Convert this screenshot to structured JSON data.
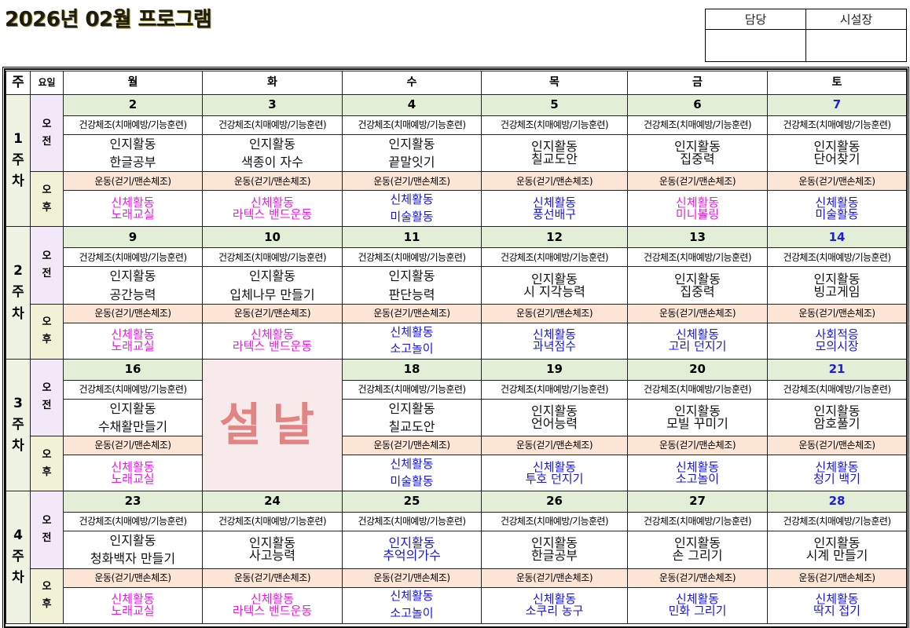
{
  "title": "2026년 02월  프로그램",
  "signoff": {
    "headers": [
      "담당",
      "시설장"
    ],
    "values": [
      "",
      ""
    ]
  },
  "header": {
    "week_label": "주",
    "period_label": "요일",
    "days": [
      "월",
      "화",
      "수",
      "목",
      "금",
      "토"
    ]
  },
  "period_labels": {
    "am": "오\n전",
    "pm": "오\n후",
    "am_lines": [
      "오",
      "전"
    ],
    "pm_lines": [
      "오",
      "후"
    ]
  },
  "colors": {
    "date_row_bg": "#e2eed5",
    "afternoon_exercise_bg": "#fde5d6",
    "am_label_bg": "#f3e8f7",
    "pm_label_bg": "#f1f1d6",
    "saturday_date": "#1d1de0",
    "magenta_text": "#ee18e8",
    "blue_text": "#1414e8",
    "holiday_text": "#e38484"
  },
  "weeks": [
    {
      "label": [
        "1",
        "주",
        "차"
      ],
      "days": [
        {
          "date": "2",
          "am_exercise": "건강체조(치매예방/기능훈련)",
          "cog": [
            "인지활동",
            "한글공부"
          ],
          "cog_color": "black",
          "cog_style": "spread",
          "pm_exercise": "운동(걷기/맨손체조)",
          "phys": [
            "신체활동",
            "노래교실"
          ],
          "phys_color": "magenta",
          "phys_style": "tight"
        },
        {
          "date": "3",
          "am_exercise": "건강체조(치매예방/기능훈련)",
          "cog": [
            "인지활동",
            "색종이  자수"
          ],
          "cog_color": "black",
          "cog_style": "spread",
          "pm_exercise": "운동(걷기/맨손체조)",
          "phys": [
            "신체활동",
            "라텍스 밴드운동"
          ],
          "phys_color": "magenta",
          "phys_style": "tight"
        },
        {
          "date": "4",
          "am_exercise": "건강체조(치매예방/기능훈련)",
          "cog": [
            "인지활동",
            "끝말잇기"
          ],
          "cog_color": "black",
          "cog_style": "spread",
          "pm_exercise": "운동(걷기/맨손체조)",
          "phys": [
            "신체활동",
            "미술활동"
          ],
          "phys_color": "blue",
          "phys_style": "spread"
        },
        {
          "date": "5",
          "am_exercise": "건강체조(치매예방/기능훈련)",
          "cog": [
            "인지활동",
            "칠교도안"
          ],
          "cog_color": "black",
          "cog_style": "tight",
          "pm_exercise": "운동(걷기/맨손체조)",
          "phys": [
            "신체활동",
            "풍선배구"
          ],
          "phys_color": "blue",
          "phys_style": "tight"
        },
        {
          "date": "6",
          "am_exercise": "건강체조(치매예방/기능훈련)",
          "cog": [
            "인지활동",
            "집중력"
          ],
          "cog_color": "black",
          "cog_style": "tight",
          "pm_exercise": "운동(걷기/맨손체조)",
          "phys": [
            "신체활동",
            "미니볼링"
          ],
          "phys_color": "magenta",
          "phys_style": "tight"
        },
        {
          "date": "7",
          "am_exercise": "건강체조(치매예방/기능훈련)",
          "cog": [
            "인지활동",
            "단어찾기"
          ],
          "cog_color": "black",
          "cog_style": "tight",
          "pm_exercise": "운동(걷기/맨손체조)",
          "phys": [
            "신체활동",
            "미술활동"
          ],
          "phys_color": "blue",
          "phys_style": "tight"
        }
      ]
    },
    {
      "label": [
        "2",
        "주",
        "차"
      ],
      "days": [
        {
          "date": "9",
          "am_exercise": "건강체조(치매예방/기능훈련)",
          "cog": [
            "인지활동",
            "공간능력"
          ],
          "cog_color": "black",
          "cog_style": "spread",
          "pm_exercise": "운동(걷기/맨손체조)",
          "phys": [
            "신체활동",
            "노래교실"
          ],
          "phys_color": "magenta",
          "phys_style": "tight"
        },
        {
          "date": "10",
          "am_exercise": "건강체조(치매예방/기능훈련)",
          "cog": [
            "인지활동",
            "입체나무  만들기"
          ],
          "cog_color": "black",
          "cog_style": "spread",
          "pm_exercise": "운동(걷기/맨손체조)",
          "phys": [
            "신체활동",
            "라텍스 밴드운동"
          ],
          "phys_color": "magenta",
          "phys_style": "tight"
        },
        {
          "date": "11",
          "am_exercise": "건강체조(치매예방/기능훈련)",
          "cog": [
            "인지활동",
            "판단능력"
          ],
          "cog_color": "black",
          "cog_style": "spread",
          "pm_exercise": "운동(걷기/맨손체조)",
          "phys": [
            "신체활동",
            "소고놀이"
          ],
          "phys_color": "blue",
          "phys_style": "spread"
        },
        {
          "date": "12",
          "am_exercise": "건강체조(치매예방/기능훈련)",
          "cog": [
            "인지활동",
            "시 지각능력"
          ],
          "cog_color": "black",
          "cog_style": "tight",
          "pm_exercise": "운동(걷기/맨손체조)",
          "phys": [
            "신체활동",
            "과녁점수"
          ],
          "phys_color": "blue",
          "phys_style": "tight"
        },
        {
          "date": "13",
          "am_exercise": "건강체조(치매예방/기능훈련)",
          "cog": [
            "인지활동",
            "집중력"
          ],
          "cog_color": "black",
          "cog_style": "tight",
          "pm_exercise": "운동(걷기/맨손체조)",
          "phys": [
            "신체활동",
            "고리  던지기"
          ],
          "phys_color": "blue",
          "phys_style": "tight"
        },
        {
          "date": "14",
          "am_exercise": "건강체조(치매예방/기능훈련)",
          "cog": [
            "인지활동",
            "빙고게임"
          ],
          "cog_color": "black",
          "cog_style": "tight",
          "pm_exercise": "운동(걷기/맨손체조)",
          "phys": [
            "사회적응",
            "모의시장"
          ],
          "phys_color": "blue",
          "phys_style": "tight"
        }
      ]
    },
    {
      "label": [
        "3",
        "주",
        "차"
      ],
      "holiday": {
        "day_index": 1,
        "text": "설날"
      },
      "days": [
        {
          "date": "16",
          "am_exercise": "건강체조(치매예방/기능훈련)",
          "cog": [
            "인지활동",
            "수채활만들기"
          ],
          "cog_color": "black",
          "cog_style": "spread",
          "pm_exercise": "운동(걷기/맨손체조)",
          "phys": [
            "신체활동",
            "노래교실"
          ],
          "phys_color": "magenta",
          "phys_style": "tight"
        },
        null,
        {
          "date": "18",
          "am_exercise": "건강체조(치매예방/기능훈련)",
          "cog": [
            "인지활동",
            "칠교도안"
          ],
          "cog_color": "black",
          "cog_style": "spread",
          "pm_exercise": "운동(걷기/맨손체조)",
          "phys": [
            "신체활동",
            "미술활동"
          ],
          "phys_color": "blue",
          "phys_style": "spread"
        },
        {
          "date": "19",
          "am_exercise": "건강체조(치매예방/기능훈련)",
          "cog": [
            "인지활동",
            "언어능력"
          ],
          "cog_color": "black",
          "cog_style": "tight",
          "pm_exercise": "운동(걷기/맨손체조)",
          "phys": [
            "신체활동",
            "투호  던지기"
          ],
          "phys_color": "blue",
          "phys_style": "tight"
        },
        {
          "date": "20",
          "am_exercise": "건강체조(치매예방/기능훈련)",
          "cog": [
            "인지활동",
            "모빌  꾸미기"
          ],
          "cog_color": "black",
          "cog_style": "tight",
          "pm_exercise": "운동(걷기/맨손체조)",
          "phys": [
            "신체활동",
            "소고놀이"
          ],
          "phys_color": "blue",
          "phys_style": "tight"
        },
        {
          "date": "21",
          "am_exercise": "건강체조(치매예방/기능훈련)",
          "cog": [
            "인지활동",
            "암호풀기"
          ],
          "cog_color": "black",
          "cog_style": "tight",
          "pm_exercise": "운동(걷기/맨손체조)",
          "phys": [
            "신체활동",
            "청기  백기"
          ],
          "phys_color": "blue",
          "phys_style": "tight"
        }
      ]
    },
    {
      "label": [
        "4",
        "주",
        "차"
      ],
      "days": [
        {
          "date": "23",
          "am_exercise": "건강체조(치매예방/기능훈련)",
          "cog": [
            "인지활동",
            "청화백자  만들기"
          ],
          "cog_color": "black",
          "cog_style": "spread",
          "pm_exercise": "운동(걷기/맨손체조)",
          "phys": [
            "신체활동",
            "노래교실"
          ],
          "phys_color": "magenta",
          "phys_style": "tight"
        },
        {
          "date": "24",
          "am_exercise": "건강체조(치매예방/기능훈련)",
          "cog": [
            "인지활동",
            "사고능력"
          ],
          "cog_color": "black",
          "cog_style": "tight",
          "pm_exercise": "운동(걷기/맨손체조)",
          "phys": [
            "신체활동",
            "라텍스  밴드운동"
          ],
          "phys_color": "magenta",
          "phys_style": "tight"
        },
        {
          "date": "25",
          "am_exercise": "건강체조(치매예방/기능훈련)",
          "cog": [
            "인지활동",
            "추억의가수"
          ],
          "cog_color": "blue",
          "cog_style": "tight",
          "pm_exercise": "운동(걷기/맨손체조)",
          "phys": [
            "신체활동",
            "소고놀이"
          ],
          "phys_color": "blue",
          "phys_style": "spread"
        },
        {
          "date": "26",
          "am_exercise": "건강체조(치매예방/기능훈련)",
          "cog": [
            "인지활동",
            "한글공부"
          ],
          "cog_color": "black",
          "cog_style": "tight",
          "pm_exercise": "운동(걷기/맨손체조)",
          "phys": [
            "신체활동",
            "소쿠리  농구"
          ],
          "phys_color": "blue",
          "phys_style": "tight"
        },
        {
          "date": "27",
          "am_exercise": "건강체조(치매예방/기능훈련)",
          "cog": [
            "인지활동",
            "손  그리기"
          ],
          "cog_color": "black",
          "cog_style": "tight",
          "pm_exercise": "운동(걷기/맨손체조)",
          "phys": [
            "신체활동",
            "민화  그리기"
          ],
          "phys_color": "blue",
          "phys_style": "tight"
        },
        {
          "date": "28",
          "am_exercise": "건강체조(치매예방/기능훈련)",
          "cog": [
            "인지활동",
            "시계  만들기"
          ],
          "cog_color": "black",
          "cog_style": "tight",
          "pm_exercise": "운동(걷기/맨손체조)",
          "phys": [
            "신체활동",
            "딱지  접기"
          ],
          "phys_color": "blue",
          "phys_style": "tight"
        }
      ]
    }
  ]
}
